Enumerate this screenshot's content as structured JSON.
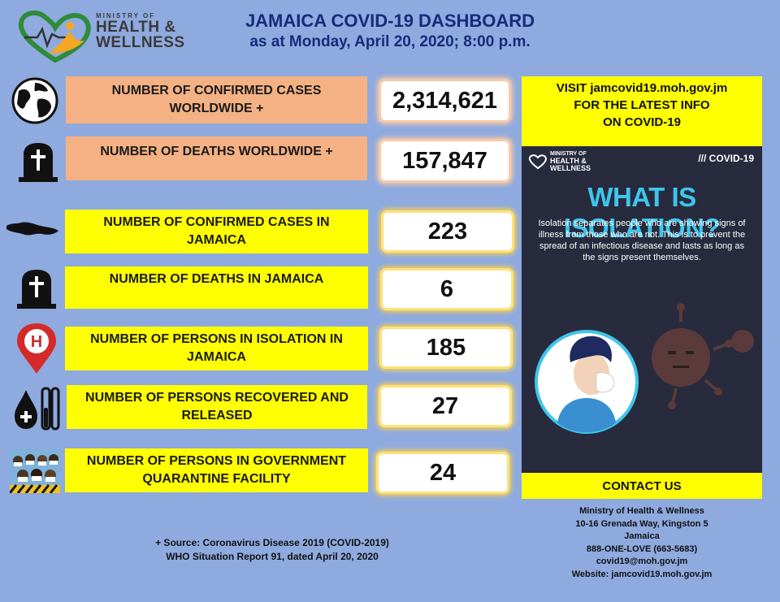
{
  "header": {
    "logo": {
      "line1": "MINISTRY OF",
      "line2": "HEALTH &",
      "line3": "WELLNESS"
    },
    "title": "JAMAICA COVID-19 DASHBOARD",
    "subtitle": "as at Monday, April 20, 2020; 8:00 p.m."
  },
  "stats": [
    {
      "icon": "globe-icon",
      "label": "NUMBER OF CONFIRMED CASES WORLDWIDE +",
      "value": "2,314,621"
    },
    {
      "icon": "tombstone-icon",
      "label": "NUMBER OF DEATHS WORLDWIDE +",
      "value": "157,847"
    },
    {
      "icon": "jamaica-map-icon",
      "label": "NUMBER OF CONFIRMED CASES IN JAMAICA",
      "value": "223"
    },
    {
      "icon": "tombstone-icon",
      "label": "NUMBER OF DEATHS IN JAMAICA",
      "value": "6"
    },
    {
      "icon": "hospital-pin-icon",
      "label": "NUMBER OF PERSONS IN ISOLATION IN JAMAICA",
      "value": "185"
    },
    {
      "icon": "blood-test-icon",
      "label": "NUMBER OF PERSONS RECOVERED AND RELEASED",
      "value": "27"
    },
    {
      "icon": "masked-crowd-icon",
      "label": "NUMBER OF PERSONS IN GOVERNMENT QUARANTINE FACILITY",
      "value": "24"
    }
  ],
  "visit": {
    "line1": "VISIT  jamcovid19.moh.gov.jm",
    "line2": "FOR THE LATEST INFO",
    "line3": "ON COVID-19"
  },
  "poster": {
    "brand1": "MINISTRY OF",
    "brand2": "HEALTH &",
    "brand3": "WELLNESS",
    "tag": "/// COVID-19",
    "headline": "WHAT IS ISOLATION?",
    "body": "Isolation separates people who are showing signs of illness from those who are not. This is to prevent the spread of an infectious disease and lasts as long as the signs present themselves."
  },
  "contact": {
    "heading": "CONTACT US",
    "org": "Ministry of Health & Wellness",
    "street": "10-16 Grenada Way, Kingston 5",
    "country": "Jamaica",
    "phone": "888-ONE-LOVE (663-5683)",
    "email": "covid19@moh.gov.jm",
    "website": "Website: jamcovid19.moh.gov.jm"
  },
  "source": {
    "line1": "+ Source: Coronavirus Disease 2019 (COVID-2019)",
    "line2": "WHO Situation Report 91, dated April 20, 2020"
  }
}
